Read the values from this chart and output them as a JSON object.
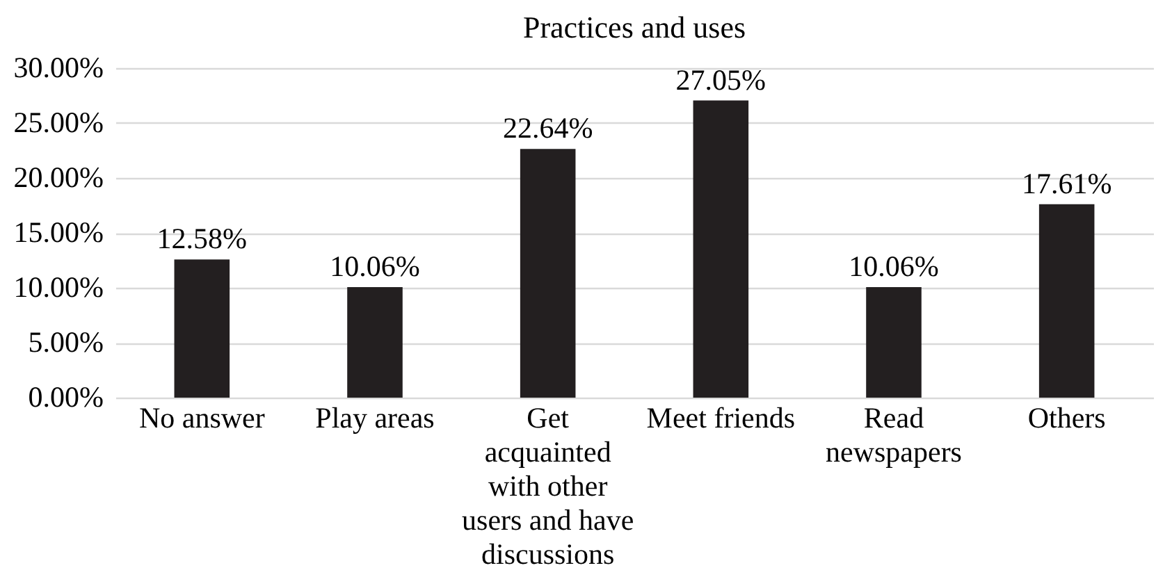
{
  "chart_data": {
    "type": "bar",
    "title": "Practices and uses",
    "categories": [
      "No answer",
      "Play areas",
      "Get acquainted with other users and have discussions",
      "Meet friends",
      "Read newspapers",
      "Others"
    ],
    "values": [
      12.58,
      10.06,
      22.64,
      27.05,
      10.06,
      17.61
    ],
    "value_labels": [
      "12.58%",
      "10.06%",
      "22.64%",
      "27.05%",
      "10.06%",
      "17.61%"
    ],
    "color": "#231f20",
    "ylim": [
      0,
      30
    ],
    "yticks": [
      {
        "value": 0,
        "label": "0.00%"
      },
      {
        "value": 5,
        "label": "5.00%"
      },
      {
        "value": 10,
        "label": "10.00%"
      },
      {
        "value": 15,
        "label": "15.00%"
      },
      {
        "value": 20,
        "label": "20.00%"
      },
      {
        "value": 25,
        "label": "25.00%"
      },
      {
        "value": 30,
        "label": "30.00%"
      }
    ],
    "grid": "y"
  }
}
